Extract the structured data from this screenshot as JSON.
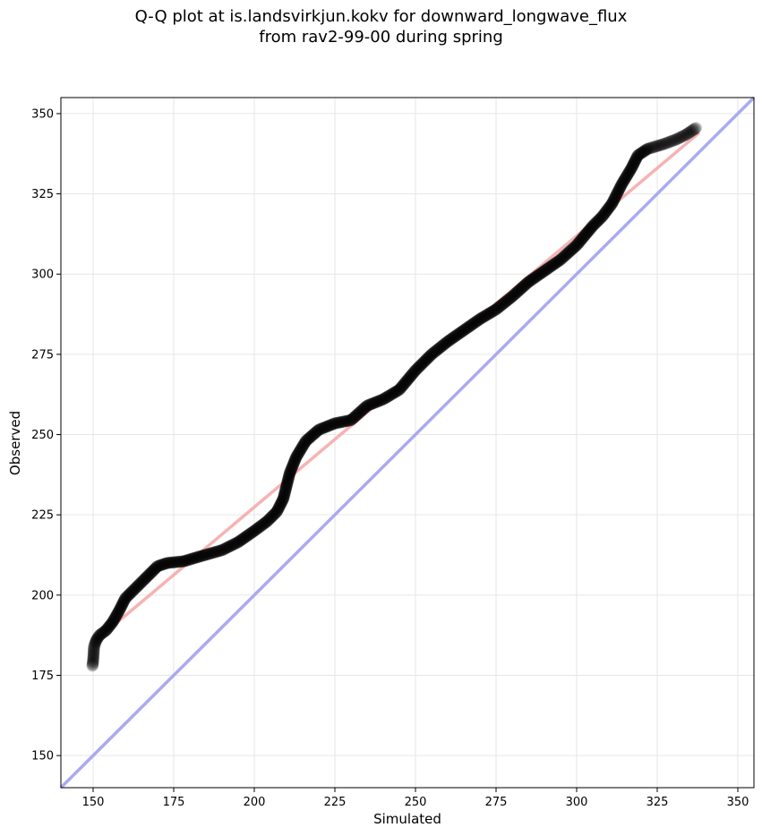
{
  "chart_data": {
    "type": "scatter",
    "title": "Q-Q plot at is.landsvirkjun.kokv for downward_longwave_flux",
    "subtitle": "from rav2-99-00 during spring",
    "xlabel": "Simulated",
    "ylabel": "Observed",
    "xlim": [
      140,
      355
    ],
    "ylim": [
      140,
      355
    ],
    "xticks": [
      150,
      175,
      200,
      225,
      250,
      275,
      300,
      325,
      350
    ],
    "yticks": [
      150,
      175,
      200,
      225,
      250,
      275,
      300,
      325,
      350
    ],
    "grid": true,
    "quantile_curve": [
      [
        149.8,
        178
      ],
      [
        150,
        179.5
      ],
      [
        150.3,
        184
      ],
      [
        151,
        186
      ],
      [
        152,
        187.5
      ],
      [
        154,
        189
      ],
      [
        156,
        191.5
      ],
      [
        158,
        195
      ],
      [
        160,
        199
      ],
      [
        163,
        202
      ],
      [
        166,
        205
      ],
      [
        168,
        207
      ],
      [
        170,
        209
      ],
      [
        173,
        210
      ],
      [
        178,
        210.5
      ],
      [
        183,
        212
      ],
      [
        190,
        214
      ],
      [
        195,
        216.5
      ],
      [
        200,
        220
      ],
      [
        204,
        223
      ],
      [
        207,
        226
      ],
      [
        209,
        230
      ],
      [
        211,
        238
      ],
      [
        213,
        243
      ],
      [
        216,
        248
      ],
      [
        220,
        251.5
      ],
      [
        225,
        253.5
      ],
      [
        230,
        254.5
      ],
      [
        235,
        259
      ],
      [
        240,
        261
      ],
      [
        245,
        264
      ],
      [
        250,
        270
      ],
      [
        255,
        275
      ],
      [
        260,
        279
      ],
      [
        265,
        282.5
      ],
      [
        270,
        286
      ],
      [
        275,
        289
      ],
      [
        280,
        293
      ],
      [
        285,
        297.5
      ],
      [
        290,
        301
      ],
      [
        295,
        304.5
      ],
      [
        300,
        309
      ],
      [
        305,
        315
      ],
      [
        308,
        318
      ],
      [
        311,
        322
      ],
      [
        314,
        328
      ],
      [
        317,
        333
      ],
      [
        319,
        337
      ],
      [
        322,
        339
      ],
      [
        327,
        340.5
      ],
      [
        331,
        342
      ],
      [
        334,
        343.5
      ],
      [
        337,
        345.5
      ]
    ],
    "fit_line": {
      "color": "#f4a6a6",
      "from": [
        151,
        186
      ],
      "to": [
        338,
        344
      ]
    },
    "identity_line": {
      "color": "#aaaaf0",
      "from": [
        140,
        140
      ],
      "to": [
        355,
        355
      ]
    },
    "point_color": "#000000"
  }
}
